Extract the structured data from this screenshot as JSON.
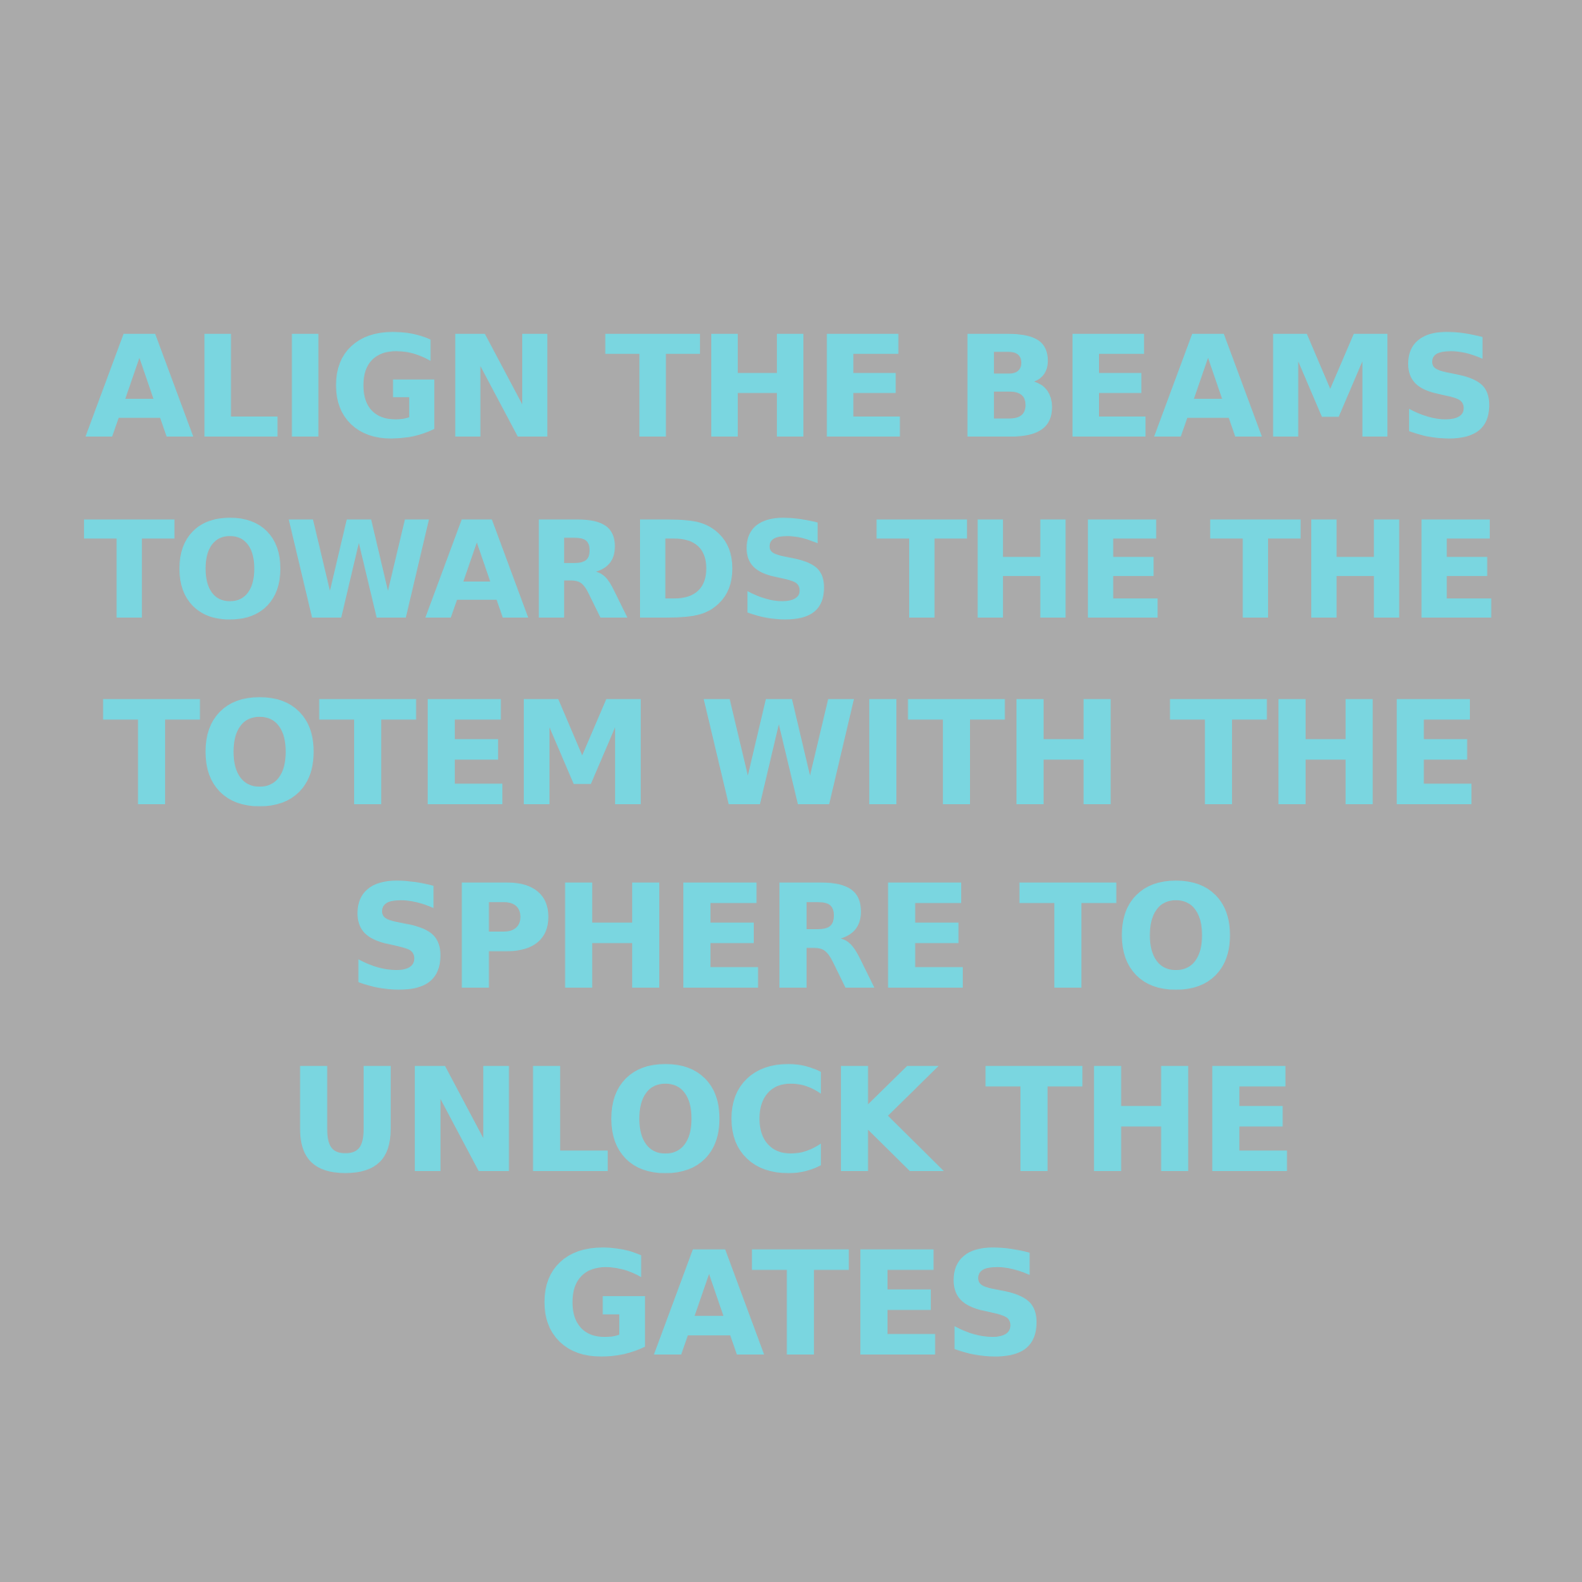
{
  "colors": {
    "background": "#aaaaaa",
    "text": "#7ad6e0"
  },
  "message": {
    "lines": [
      "ALIGN THE BEAMS",
      "TOWARDS THE THE",
      "TOTEM WITH THE",
      "SPHERE TO",
      "UNLOCK THE",
      "GATES"
    ]
  }
}
